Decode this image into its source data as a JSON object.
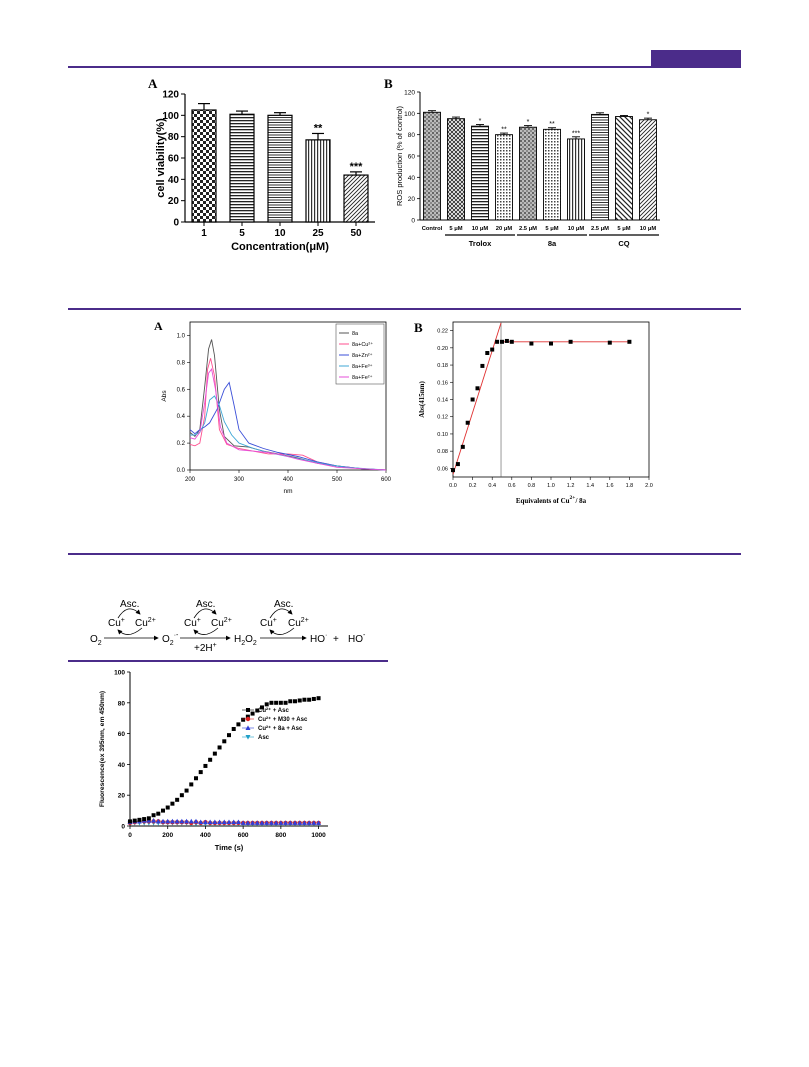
{
  "colors": {
    "accent": "#4b2c8a"
  },
  "fig1": {
    "panel_label": "A",
    "chart_data": {
      "type": "bar",
      "categories": [
        "1",
        "5",
        "10",
        "25",
        "50"
      ],
      "values": [
        105,
        101,
        100,
        77,
        44
      ],
      "errors": [
        6,
        3,
        2.5,
        6,
        3
      ],
      "significance": [
        "",
        "",
        "",
        "**",
        "***"
      ],
      "xlabel": "Concentration(μM)",
      "ylabel": "cell viability(%)",
      "ylim": [
        0,
        120
      ],
      "yticks": [
        "0",
        "20",
        "40",
        "60",
        "80",
        "100",
        "120"
      ]
    }
  },
  "fig2": {
    "panel_label": "B",
    "chart_data": {
      "type": "bar",
      "categories": [
        "Control",
        "5 μM",
        "10 μM",
        "20 μM",
        "2.5 μM",
        "5 μM",
        "10 μM",
        "2.5 μM",
        "5 μM",
        "10 μM"
      ],
      "values": [
        101,
        95,
        88,
        80,
        87,
        85,
        76,
        99,
        97,
        94
      ],
      "errors": [
        1.5,
        1.5,
        1.5,
        1.5,
        1.5,
        1.5,
        2,
        1.5,
        1,
        1.5
      ],
      "significance": [
        "",
        "",
        "*",
        "**",
        "*",
        "**",
        "***",
        "",
        "",
        "*"
      ],
      "groups": [
        {
          "label": "Trolox",
          "from": 1,
          "to": 3
        },
        {
          "label": "8a",
          "from": 4,
          "to": 6
        },
        {
          "label": "CQ",
          "from": 7,
          "to": 9
        }
      ],
      "ylabel": "ROS production (% of control)",
      "ylim": [
        0,
        120
      ],
      "yticks": [
        "0",
        "20",
        "40",
        "60",
        "80",
        "100",
        "120"
      ]
    }
  },
  "fig3": {
    "panel_label": "A",
    "chart_data": {
      "type": "line",
      "xlabel": "nm",
      "ylabel": "Abs",
      "xlim": [
        200,
        600
      ],
      "ylim": [
        0,
        1.1
      ],
      "xticks": [
        "200",
        "300",
        "400",
        "500",
        "600"
      ],
      "yticks": [
        "0.0",
        "0.2",
        "0.4",
        "0.6",
        "0.8",
        "1.0"
      ],
      "series": [
        {
          "name": "8a",
          "color": "#555555",
          "x": [
            200,
            210,
            220,
            230,
            238,
            244,
            250,
            260,
            270,
            290,
            320,
            350,
            380,
            420,
            460,
            500,
            550,
            600
          ],
          "y": [
            0.28,
            0.25,
            0.3,
            0.62,
            0.9,
            0.97,
            0.85,
            0.45,
            0.25,
            0.18,
            0.17,
            0.14,
            0.12,
            0.09,
            0.05,
            0.03,
            0.01,
            0.0
          ]
        },
        {
          "name": "8a+Cu²⁺",
          "color": "#ff4f8f",
          "x": [
            200,
            210,
            220,
            230,
            236,
            242,
            250,
            260,
            275,
            300,
            330,
            360,
            400,
            430,
            460,
            500,
            550,
            600
          ],
          "y": [
            0.19,
            0.18,
            0.2,
            0.4,
            0.75,
            0.83,
            0.7,
            0.3,
            0.19,
            0.16,
            0.14,
            0.12,
            0.12,
            0.11,
            0.06,
            0.03,
            0.01,
            0.0
          ]
        },
        {
          "name": "8a+Zn²⁺",
          "color": "#3b4fd8",
          "x": [
            200,
            210,
            220,
            230,
            240,
            255,
            270,
            280,
            290,
            300,
            320,
            350,
            380,
            420,
            460,
            500,
            550,
            600
          ],
          "y": [
            0.3,
            0.27,
            0.3,
            0.32,
            0.35,
            0.45,
            0.6,
            0.65,
            0.48,
            0.3,
            0.2,
            0.16,
            0.13,
            0.1,
            0.06,
            0.03,
            0.01,
            0.0
          ]
        },
        {
          "name": "8a+Fe³⁺",
          "color": "#3fa7d6",
          "x": [
            200,
            210,
            220,
            230,
            240,
            250,
            260,
            270,
            285,
            300,
            330,
            360,
            400,
            440,
            480,
            520,
            560,
            600
          ],
          "y": [
            0.26,
            0.26,
            0.28,
            0.35,
            0.52,
            0.55,
            0.48,
            0.36,
            0.26,
            0.2,
            0.16,
            0.13,
            0.1,
            0.07,
            0.04,
            0.02,
            0.01,
            0.0
          ]
        },
        {
          "name": "8a+Fe²⁺",
          "color": "#e64fd8",
          "x": [
            200,
            210,
            220,
            230,
            238,
            244,
            252,
            262,
            275,
            300,
            330,
            360,
            390,
            420,
            460,
            500,
            550,
            600
          ],
          "y": [
            0.24,
            0.23,
            0.28,
            0.5,
            0.72,
            0.75,
            0.6,
            0.32,
            0.2,
            0.15,
            0.14,
            0.13,
            0.11,
            0.08,
            0.05,
            0.02,
            0.01,
            0.0
          ]
        }
      ]
    }
  },
  "fig4": {
    "panel_label": "B",
    "chart_data": {
      "type": "scatter",
      "xlabel_main": "Equivalents of Cu",
      "xlabel_sup": "2+",
      "xlabel_tail": "/ 8a",
      "ylabel": "Abs(415nm)",
      "xlim": [
        0,
        2.0
      ],
      "ylim": [
        0.05,
        0.23
      ],
      "xticks": [
        "0.0",
        "0.2",
        "0.4",
        "0.6",
        "0.8",
        "1.0",
        "1.2",
        "1.4",
        "1.6",
        "1.8",
        "2.0"
      ],
      "yticks": [
        "0.06",
        "0.08",
        "0.10",
        "0.12",
        "0.14",
        "0.16",
        "0.18",
        "0.20",
        "0.22"
      ],
      "x": [
        0.0,
        0.05,
        0.1,
        0.15,
        0.2,
        0.25,
        0.3,
        0.35,
        0.4,
        0.45,
        0.5,
        0.55,
        0.6,
        0.8,
        1.0,
        1.2,
        1.6,
        1.8
      ],
      "y": [
        0.058,
        0.065,
        0.085,
        0.113,
        0.14,
        0.153,
        0.179,
        0.194,
        0.198,
        0.207,
        0.207,
        0.208,
        0.207,
        0.205,
        0.205,
        0.207,
        0.206,
        0.207
      ],
      "fit": [
        {
          "x": 0.0,
          "y": 0.053
        },
        {
          "x": 0.49,
          "y": 0.229
        }
      ],
      "plateau": [
        {
          "x": 0.49,
          "y": 0.207
        },
        {
          "x": 1.8,
          "y": 0.207
        }
      ],
      "vline_x": 0.49
    }
  },
  "scheme": {
    "asc": "Asc.",
    "cu1": "Cu",
    "cu1_sup": "+",
    "cu2": "Cu",
    "cu2_sup": "2+",
    "o2": "O",
    "o2_sub": "2",
    "superoxide": "O",
    "superoxide_sub": "2",
    "superoxide_sup": "·-",
    "h2o2": "H",
    "h2o2_sub": "2",
    "h2o2_mid": "O",
    "h2o2_sub2": "2",
    "proton": "+2H",
    "proton_sup": "+",
    "hydroxyl": "HO",
    "hydroxyl_sup": "·",
    "plus": "+",
    "hydroxide": "HO",
    "hydroxide_sup": "-"
  },
  "fig5": {
    "chart_data": {
      "type": "scatter",
      "xlabel": "Time (s)",
      "ylabel": "Fluorescence(ex 395nm, em 450nm)",
      "xlim": [
        0,
        1050
      ],
      "ylim": [
        0,
        100
      ],
      "xticks": [
        "0",
        "200",
        "400",
        "600",
        "800",
        "1000"
      ],
      "yticks": [
        "0",
        "20",
        "40",
        "60",
        "80",
        "100"
      ],
      "series": [
        {
          "name": "Cu²⁺ + Asc",
          "color": "#000000",
          "marker": "square",
          "x": [
            0,
            25,
            50,
            75,
            100,
            125,
            150,
            175,
            200,
            225,
            250,
            275,
            300,
            325,
            350,
            375,
            400,
            425,
            450,
            475,
            500,
            525,
            550,
            575,
            600,
            625,
            650,
            675,
            700,
            725,
            750,
            775,
            800,
            825,
            850,
            875,
            900,
            925,
            950,
            975,
            1000
          ],
          "y": [
            3,
            3.5,
            4,
            4.5,
            5,
            7,
            8,
            10,
            12,
            14.5,
            17,
            20,
            23,
            27,
            31,
            35,
            39,
            43,
            47,
            51,
            55,
            59,
            63,
            66,
            69,
            71,
            73,
            75,
            77,
            79,
            80,
            80,
            80,
            80,
            81,
            81,
            81.5,
            82,
            82,
            82.5,
            83
          ]
        },
        {
          "name": "Cu²⁺ + M30 + Asc",
          "color": "#e02020",
          "marker": "circle",
          "x": [
            0,
            25,
            50,
            75,
            100,
            125,
            150,
            175,
            200,
            225,
            250,
            275,
            300,
            325,
            350,
            375,
            400,
            425,
            450,
            475,
            500,
            525,
            550,
            575,
            600,
            625,
            650,
            675,
            700,
            725,
            750,
            775,
            800,
            825,
            850,
            875,
            900,
            925,
            950,
            975,
            1000
          ],
          "y": [
            2,
            2.5,
            3,
            3,
            3,
            3,
            3,
            2.5,
            2.5,
            2.5,
            2.5,
            2.5,
            2.5,
            2,
            2.5,
            2,
            2.5,
            2,
            2,
            2,
            2,
            2,
            2,
            2,
            2,
            2,
            2,
            2,
            2,
            2,
            2,
            2,
            2,
            2,
            2,
            2,
            2,
            2,
            2,
            2,
            2
          ]
        },
        {
          "name": "Cu²⁺ + 8a + Asc",
          "color": "#3040d8",
          "marker": "triangle",
          "x": [
            0,
            25,
            50,
            75,
            100,
            125,
            150,
            175,
            200,
            225,
            250,
            275,
            300,
            325,
            350,
            375,
            400,
            425,
            450,
            475,
            500,
            525,
            550,
            575,
            600,
            625,
            650,
            675,
            700,
            725,
            750,
            775,
            800,
            825,
            850,
            875,
            900,
            925,
            950,
            975,
            1000
          ],
          "y": [
            2.5,
            3,
            3,
            3.5,
            3.5,
            3.5,
            3,
            3,
            3,
            3,
            3,
            3,
            3,
            3,
            3,
            2.5,
            2.5,
            2.5,
            2.5,
            2.5,
            2.5,
            2.5,
            2.5,
            2.5,
            2,
            2,
            2,
            2,
            2,
            2,
            2,
            2,
            2,
            2,
            2,
            2,
            2,
            2,
            2,
            2,
            2
          ]
        },
        {
          "name": "Asc",
          "color": "#20a0c8",
          "marker": "triangle-down",
          "x": [
            0,
            25,
            50,
            75,
            100,
            125,
            150,
            175,
            200,
            225,
            250,
            275,
            300,
            325,
            350,
            375,
            400,
            425,
            450,
            475,
            500,
            525,
            550,
            575,
            600,
            625,
            650,
            675,
            700,
            725,
            750,
            775,
            800,
            825,
            850,
            875,
            900,
            925,
            950,
            975,
            1000
          ],
          "y": [
            2,
            2,
            2,
            2,
            2,
            2,
            2,
            2,
            2,
            2,
            2,
            2,
            2,
            1.5,
            1.5,
            1.5,
            1.5,
            1.5,
            1.5,
            1.5,
            1.5,
            1.5,
            1.5,
            1.5,
            1.5,
            1.5,
            1.5,
            1.5,
            1.5,
            1.5,
            1.5,
            1.5,
            1.5,
            1.5,
            1.5,
            1.5,
            1.5,
            1.5,
            1.5,
            1.5,
            1.5
          ]
        }
      ]
    }
  }
}
